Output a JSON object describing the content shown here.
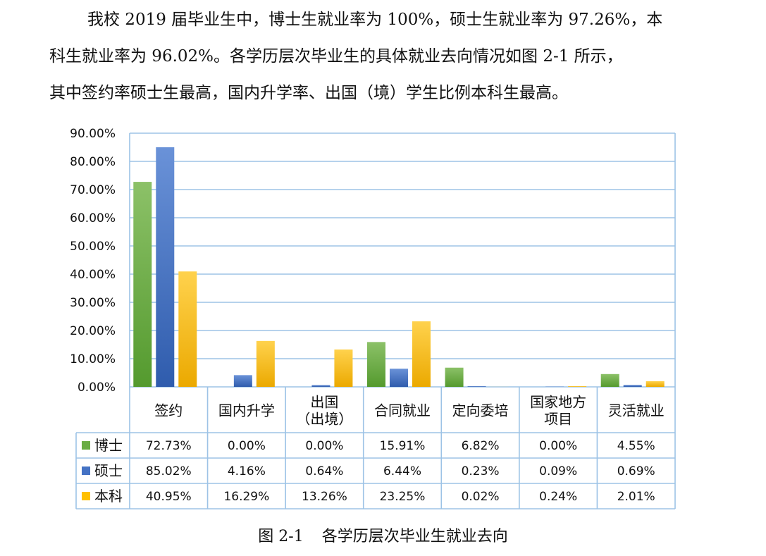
{
  "paragraph": {
    "line1": "我校 2019 届毕业生中，博士生就业率为 100%，硕士生就业率为 97.26%，本",
    "line2": "科生就业率为 96.02%。各学历层次毕业生的具体就业去向情况如图 2-1 所示，",
    "line3": "其中签约率硕士生最高，国内升学率、出国（境）学生比例本科生最高。"
  },
  "caption": {
    "number": "图 2-1",
    "text": "各学历层次毕业生就业去向"
  },
  "colors": {
    "博士": "#6aac44",
    "硕士": "#4472c4",
    "本科": "#ffc000",
    "grid": "#9dc3e6"
  },
  "chart_data": {
    "type": "bar",
    "categories": [
      "签约",
      "国内升学",
      "出国（出境）",
      "合同就业",
      "定向委培",
      "国家地方项目",
      "灵活就业"
    ],
    "category_lines": [
      [
        "签约"
      ],
      [
        "国内升学"
      ],
      [
        "出国",
        "（出境）"
      ],
      [
        "合同就业"
      ],
      [
        "定向委培"
      ],
      [
        "国家地方",
        "项目"
      ],
      [
        "灵活就业"
      ]
    ],
    "series": [
      {
        "name": "博士",
        "values": [
          72.73,
          0.0,
          0.0,
          15.91,
          6.82,
          0.0,
          4.55
        ],
        "labels": [
          "72.73%",
          "0.00%",
          "0.00%",
          "15.91%",
          "6.82%",
          "0.00%",
          "4.55%"
        ]
      },
      {
        "name": "硕士",
        "values": [
          85.02,
          4.16,
          0.64,
          6.44,
          0.23,
          0.09,
          0.69
        ],
        "labels": [
          "85.02%",
          "4.16%",
          "0.64%",
          "6.44%",
          "0.23%",
          "0.09%",
          "0.69%"
        ]
      },
      {
        "name": "本科",
        "values": [
          40.95,
          16.29,
          13.26,
          23.25,
          0.02,
          0.24,
          2.01
        ],
        "labels": [
          "40.95%",
          "16.29%",
          "13.26%",
          "23.25%",
          "0.02%",
          "0.24%",
          "2.01%"
        ]
      }
    ],
    "ylim": [
      0,
      90
    ],
    "ytick_labels": [
      "0.00%",
      "10.00%",
      "20.00%",
      "30.00%",
      "40.00%",
      "50.00%",
      "60.00%",
      "70.00%",
      "80.00%",
      "90.00%"
    ],
    "grid": true,
    "legend": "data-table"
  }
}
